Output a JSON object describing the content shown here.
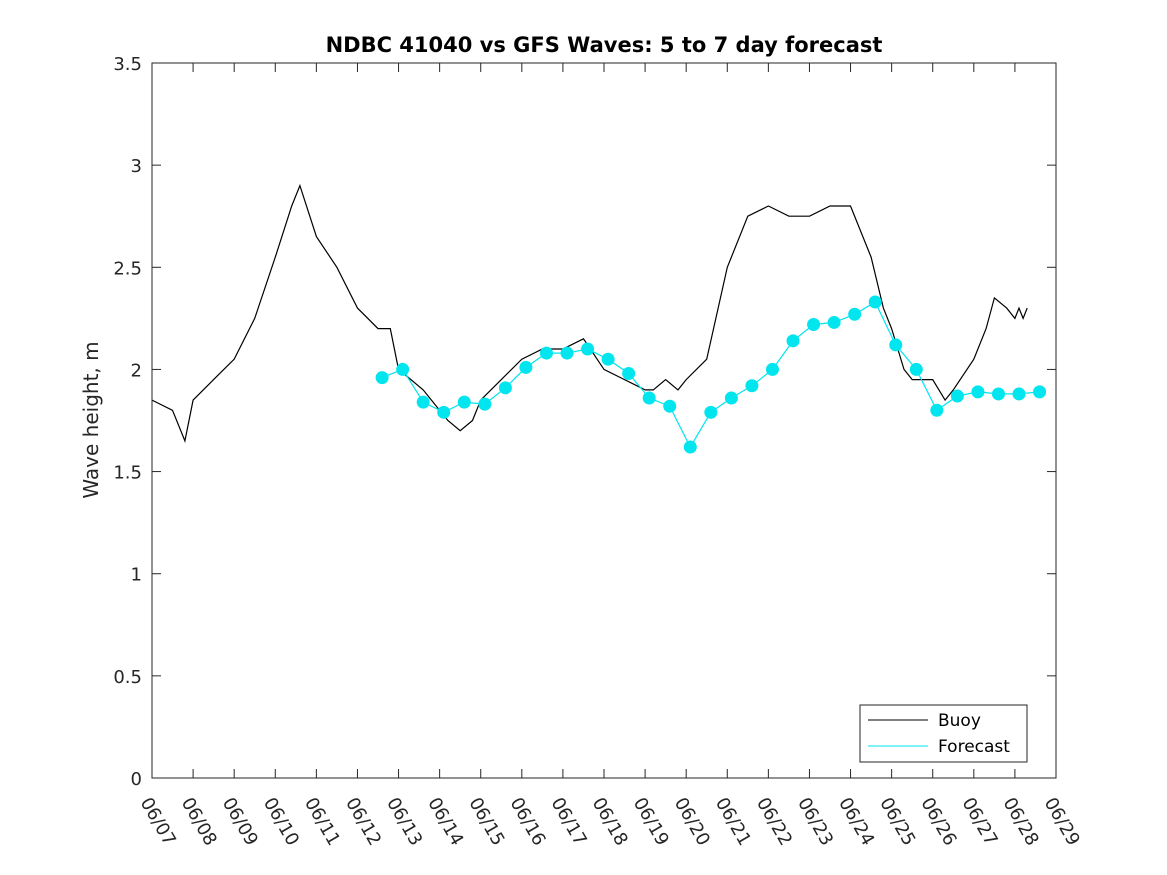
{
  "chart_data": {
    "type": "line",
    "title": "NDBC 41040 vs GFS Waves: 5 to 7 day forecast",
    "xlabel": "",
    "ylabel": "Wave height, m",
    "x_tick_labels": [
      "06/07",
      "06/08",
      "06/09",
      "06/10",
      "06/11",
      "06/12",
      "06/13",
      "06/14",
      "06/15",
      "06/16",
      "06/17",
      "06/18",
      "06/19",
      "06/20",
      "06/21",
      "06/22",
      "06/23",
      "06/24",
      "06/25",
      "06/26",
      "06/27",
      "06/28",
      "06/29"
    ],
    "xlim": [
      0,
      22
    ],
    "ylim": [
      0,
      3.5
    ],
    "y_ticks": [
      0,
      0.5,
      1,
      1.5,
      2,
      2.5,
      3,
      3.5
    ],
    "y_tick_labels": [
      "0",
      "0.5",
      "1",
      "1.5",
      "2",
      "2.5",
      "3",
      "3.5"
    ],
    "grid": false,
    "legend": {
      "position": "bottom-right",
      "entries": [
        {
          "label": "Buoy",
          "color": "#000000"
        },
        {
          "label": "Forecast",
          "color": "#00e5ee"
        }
      ]
    },
    "x_unit_note": "x values are days since 06/07",
    "series": [
      {
        "name": "Buoy",
        "color": "#000000",
        "x": [
          0,
          0.5,
          0.8,
          1.0,
          1.5,
          2.0,
          2.5,
          3.0,
          3.4,
          3.6,
          4.0,
          4.5,
          5.0,
          5.5,
          5.8,
          6.0,
          6.3,
          6.6,
          7.0,
          7.2,
          7.5,
          7.8,
          8.0,
          8.5,
          9.0,
          9.5,
          10.0,
          10.5,
          11.0,
          11.5,
          12.0,
          12.2,
          12.5,
          12.8,
          13.0,
          13.5,
          14.0,
          14.5,
          15.0,
          15.5,
          16.0,
          16.5,
          17.0,
          17.5,
          17.8,
          18.0,
          18.3,
          18.5,
          19.0,
          19.3,
          19.5,
          20.0,
          20.3,
          20.5,
          20.8,
          21.0,
          21.1,
          21.2,
          21.3
        ],
        "y": [
          1.85,
          1.8,
          1.65,
          1.85,
          1.95,
          2.05,
          2.25,
          2.55,
          2.8,
          2.9,
          2.65,
          2.5,
          2.3,
          2.2,
          2.2,
          2.0,
          1.95,
          1.9,
          1.8,
          1.75,
          1.7,
          1.75,
          1.85,
          1.95,
          2.05,
          2.1,
          2.1,
          2.15,
          2.0,
          1.95,
          1.9,
          1.9,
          1.95,
          1.9,
          1.95,
          2.05,
          2.5,
          2.75,
          2.8,
          2.75,
          2.75,
          2.8,
          2.8,
          2.55,
          2.3,
          2.2,
          2.0,
          1.95,
          1.95,
          1.85,
          1.9,
          2.05,
          2.2,
          2.35,
          2.3,
          2.25,
          2.3,
          2.25,
          2.3
        ]
      },
      {
        "name": "Forecast",
        "color": "#00e5ee",
        "x": [
          5.6,
          6.1,
          6.6,
          7.1,
          7.6,
          8.1,
          8.6,
          9.1,
          9.6,
          10.1,
          10.6,
          11.1,
          11.6,
          12.1,
          12.6,
          13.1,
          13.6,
          14.1,
          14.6,
          15.1,
          15.6,
          16.1,
          16.6,
          17.1,
          17.6,
          18.1,
          18.6,
          19.1,
          19.6,
          20.1,
          20.6,
          21.1,
          21.6
        ],
        "y": [
          1.96,
          2.0,
          1.84,
          1.79,
          1.84,
          1.83,
          1.91,
          2.01,
          2.08,
          2.08,
          2.1,
          2.05,
          1.98,
          1.86,
          1.82,
          1.62,
          1.79,
          1.86,
          1.92,
          2.0,
          2.14,
          2.22,
          2.23,
          2.27,
          2.33,
          2.12,
          2.0,
          1.8,
          1.87,
          1.89,
          1.88,
          1.88,
          1.89
        ]
      }
    ]
  }
}
